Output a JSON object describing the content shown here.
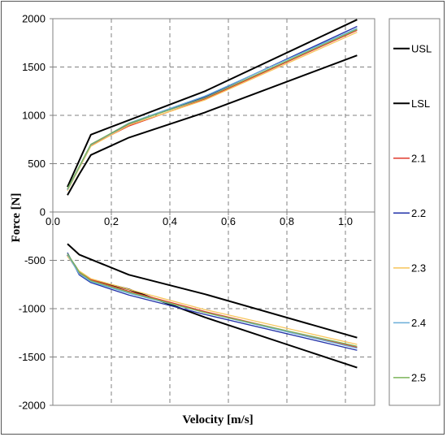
{
  "chart_data": {
    "type": "line",
    "title": "",
    "xlabel": "Velocity [m/s]",
    "ylabel": "Force [N]",
    "xlim": [
      0,
      1.1
    ],
    "ylim": [
      -2000,
      2000
    ],
    "x_ticks": [
      "0.0",
      "0.2",
      "0.4",
      "0.6",
      "0.8",
      "1.0"
    ],
    "y_ticks": [
      "2000",
      "1500",
      "1000",
      "500",
      "0",
      "-500",
      "-1000",
      "-1500",
      "-2000"
    ],
    "grid": "dashed",
    "legend_position": "right",
    "series": [
      {
        "name": "USL",
        "color": "#000000",
        "rebound": [
          [
            0.05,
            260
          ],
          [
            0.13,
            800
          ],
          [
            0.26,
            950
          ],
          [
            0.52,
            1250
          ],
          [
            1.04,
            1990
          ]
        ],
        "compression": [
          [
            0.05,
            -330
          ],
          [
            0.09,
            -440
          ],
          [
            0.13,
            -490
          ],
          [
            0.26,
            -650
          ],
          [
            0.52,
            -850
          ],
          [
            1.04,
            -1300
          ]
        ]
      },
      {
        "name": "LSL",
        "color": "#000000",
        "rebound": [
          [
            0.05,
            175
          ],
          [
            0.09,
            390
          ],
          [
            0.13,
            590
          ],
          [
            0.26,
            770
          ],
          [
            0.52,
            1030
          ],
          [
            1.04,
            1620
          ]
        ],
        "compression": [
          [
            0.05,
            -440
          ],
          [
            0.09,
            -620
          ],
          [
            0.13,
            -700
          ],
          [
            0.26,
            -800
          ],
          [
            0.52,
            -1090
          ],
          [
            1.04,
            -1610
          ]
        ]
      },
      {
        "name": "2.1",
        "color": "#e0382c",
        "rebound": [
          [
            0.05,
            225
          ],
          [
            0.13,
            690
          ],
          [
            0.26,
            890
          ],
          [
            0.52,
            1170
          ],
          [
            1.04,
            1880
          ]
        ],
        "compression": [
          [
            0.05,
            -450
          ],
          [
            0.09,
            -630
          ],
          [
            0.13,
            -700
          ],
          [
            0.26,
            -820
          ],
          [
            0.52,
            -1030
          ],
          [
            1.04,
            -1400
          ]
        ]
      },
      {
        "name": "2.2",
        "color": "#2232a8",
        "rebound": [
          [
            0.05,
            235
          ],
          [
            0.13,
            700
          ],
          [
            0.26,
            910
          ],
          [
            0.52,
            1190
          ],
          [
            1.04,
            1920
          ]
        ],
        "compression": [
          [
            0.05,
            -420
          ],
          [
            0.09,
            -650
          ],
          [
            0.13,
            -730
          ],
          [
            0.26,
            -860
          ],
          [
            0.52,
            -1060
          ],
          [
            1.04,
            -1430
          ]
        ]
      },
      {
        "name": "2.3",
        "color": "#f7c55a",
        "rebound": [
          [
            0.05,
            220
          ],
          [
            0.13,
            680
          ],
          [
            0.26,
            900
          ],
          [
            0.52,
            1160
          ],
          [
            1.04,
            1860
          ]
        ],
        "compression": [
          [
            0.05,
            -460
          ],
          [
            0.09,
            -610
          ],
          [
            0.13,
            -690
          ],
          [
            0.26,
            -800
          ],
          [
            0.52,
            -1010
          ],
          [
            1.04,
            -1370
          ]
        ]
      },
      {
        "name": "2.4",
        "color": "#6aaed8",
        "rebound": [
          [
            0.05,
            230
          ],
          [
            0.13,
            695
          ],
          [
            0.26,
            920
          ],
          [
            0.52,
            1200
          ],
          [
            1.04,
            1900
          ]
        ],
        "compression": [
          [
            0.05,
            -440
          ],
          [
            0.09,
            -640
          ],
          [
            0.13,
            -720
          ],
          [
            0.26,
            -840
          ],
          [
            0.52,
            -1040
          ],
          [
            1.04,
            -1410
          ]
        ]
      },
      {
        "name": "2.5",
        "color": "#7cb45a",
        "rebound": [
          [
            0.05,
            240
          ],
          [
            0.13,
            700
          ],
          [
            0.26,
            915
          ],
          [
            0.52,
            1180
          ],
          [
            1.04,
            1890
          ]
        ],
        "compression": [
          [
            0.05,
            -430
          ],
          [
            0.09,
            -620
          ],
          [
            0.13,
            -710
          ],
          [
            0.26,
            -830
          ],
          [
            0.52,
            -1040
          ],
          [
            1.04,
            -1390
          ]
        ]
      }
    ]
  }
}
